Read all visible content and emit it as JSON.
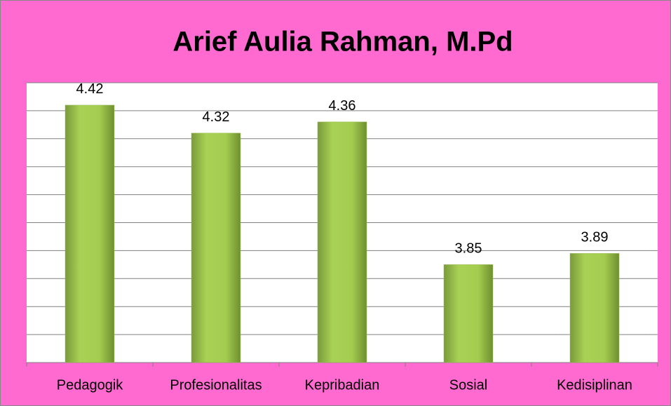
{
  "chart_data": {
    "type": "bar",
    "title": "Arief Aulia Rahman, M.Pd",
    "categories": [
      "Pedagogik",
      "Profesionalitas",
      "Kepribadian",
      "Sosial",
      "Kedisiplinan"
    ],
    "values": [
      4.42,
      4.32,
      4.36,
      3.85,
      3.89
    ],
    "color": "#9bbb59",
    "ylim": [
      3.5,
      4.5
    ],
    "yticks": [
      3.5,
      3.6,
      3.7,
      3.8,
      3.9,
      4.0,
      4.1,
      4.2,
      4.3,
      4.4,
      4.5
    ],
    "grid": true
  }
}
